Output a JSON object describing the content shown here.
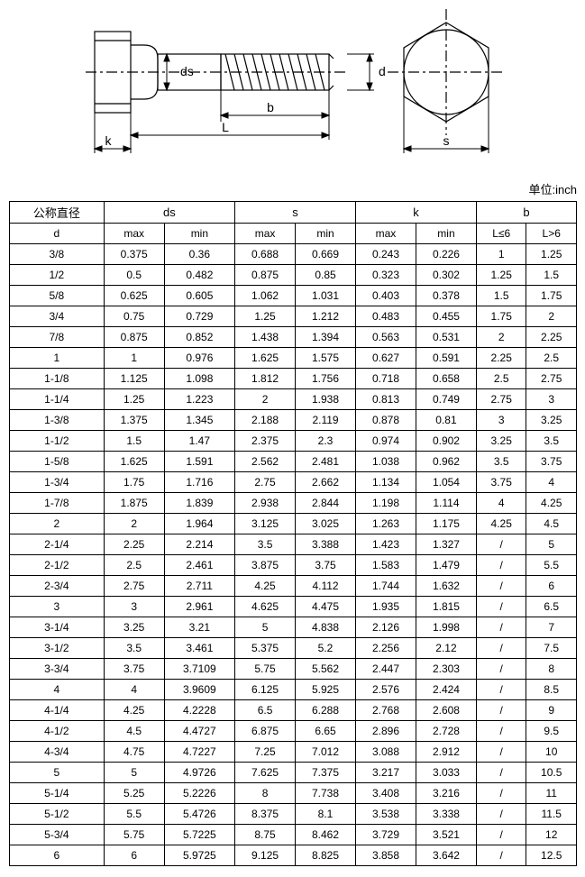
{
  "unit_label": "单位:inch",
  "diagram": {
    "labels": {
      "ds": "ds",
      "b": "b",
      "L": "L",
      "k": "k",
      "d": "d",
      "s": "s"
    },
    "stroke": "#000000",
    "fill": "#ffffff"
  },
  "table": {
    "header1": {
      "col_d": "公称直径",
      "col_ds": "ds",
      "col_s": "s",
      "col_k": "k",
      "col_b": "b"
    },
    "header2": {
      "col_d": "d",
      "max1": "max",
      "min1": "min",
      "max2": "max",
      "min2": "min",
      "max3": "max",
      "min3": "min",
      "lle6": "L≤6",
      "lgt6": "L>6"
    },
    "rows": [
      {
        "d": "3/8",
        "ds_max": "0.375",
        "ds_min": "0.36",
        "s_max": "0.688",
        "s_min": "0.669",
        "k_max": "0.243",
        "k_min": "0.226",
        "b1": "1",
        "b2": "1.25"
      },
      {
        "d": "1/2",
        "ds_max": "0.5",
        "ds_min": "0.482",
        "s_max": "0.875",
        "s_min": "0.85",
        "k_max": "0.323",
        "k_min": "0.302",
        "b1": "1.25",
        "b2": "1.5"
      },
      {
        "d": "5/8",
        "ds_max": "0.625",
        "ds_min": "0.605",
        "s_max": "1.062",
        "s_min": "1.031",
        "k_max": "0.403",
        "k_min": "0.378",
        "b1": "1.5",
        "b2": "1.75"
      },
      {
        "d": "3/4",
        "ds_max": "0.75",
        "ds_min": "0.729",
        "s_max": "1.25",
        "s_min": "1.212",
        "k_max": "0.483",
        "k_min": "0.455",
        "b1": "1.75",
        "b2": "2"
      },
      {
        "d": "7/8",
        "ds_max": "0.875",
        "ds_min": "0.852",
        "s_max": "1.438",
        "s_min": "1.394",
        "k_max": "0.563",
        "k_min": "0.531",
        "b1": "2",
        "b2": "2.25"
      },
      {
        "d": "1",
        "ds_max": "1",
        "ds_min": "0.976",
        "s_max": "1.625",
        "s_min": "1.575",
        "k_max": "0.627",
        "k_min": "0.591",
        "b1": "2.25",
        "b2": "2.5"
      },
      {
        "d": "1-1/8",
        "ds_max": "1.125",
        "ds_min": "1.098",
        "s_max": "1.812",
        "s_min": "1.756",
        "k_max": "0.718",
        "k_min": "0.658",
        "b1": "2.5",
        "b2": "2.75"
      },
      {
        "d": "1-1/4",
        "ds_max": "1.25",
        "ds_min": "1.223",
        "s_max": "2",
        "s_min": "1.938",
        "k_max": "0.813",
        "k_min": "0.749",
        "b1": "2.75",
        "b2": "3"
      },
      {
        "d": "1-3/8",
        "ds_max": "1.375",
        "ds_min": "1.345",
        "s_max": "2.188",
        "s_min": "2.119",
        "k_max": "0.878",
        "k_min": "0.81",
        "b1": "3",
        "b2": "3.25"
      },
      {
        "d": "1-1/2",
        "ds_max": "1.5",
        "ds_min": "1.47",
        "s_max": "2.375",
        "s_min": "2.3",
        "k_max": "0.974",
        "k_min": "0.902",
        "b1": "3.25",
        "b2": "3.5"
      },
      {
        "d": "1-5/8",
        "ds_max": "1.625",
        "ds_min": "1.591",
        "s_max": "2.562",
        "s_min": "2.481",
        "k_max": "1.038",
        "k_min": "0.962",
        "b1": "3.5",
        "b2": "3.75"
      },
      {
        "d": "1-3/4",
        "ds_max": "1.75",
        "ds_min": "1.716",
        "s_max": "2.75",
        "s_min": "2.662",
        "k_max": "1.134",
        "k_min": "1.054",
        "b1": "3.75",
        "b2": "4"
      },
      {
        "d": "1-7/8",
        "ds_max": "1.875",
        "ds_min": "1.839",
        "s_max": "2.938",
        "s_min": "2.844",
        "k_max": "1.198",
        "k_min": "1.114",
        "b1": "4",
        "b2": "4.25"
      },
      {
        "d": "2",
        "ds_max": "2",
        "ds_min": "1.964",
        "s_max": "3.125",
        "s_min": "3.025",
        "k_max": "1.263",
        "k_min": "1.175",
        "b1": "4.25",
        "b2": "4.5"
      },
      {
        "d": "2-1/4",
        "ds_max": "2.25",
        "ds_min": "2.214",
        "s_max": "3.5",
        "s_min": "3.388",
        "k_max": "1.423",
        "k_min": "1.327",
        "b1": "/",
        "b2": "5"
      },
      {
        "d": "2-1/2",
        "ds_max": "2.5",
        "ds_min": "2.461",
        "s_max": "3.875",
        "s_min": "3.75",
        "k_max": "1.583",
        "k_min": "1.479",
        "b1": "/",
        "b2": "5.5"
      },
      {
        "d": "2-3/4",
        "ds_max": "2.75",
        "ds_min": "2.711",
        "s_max": "4.25",
        "s_min": "4.112",
        "k_max": "1.744",
        "k_min": "1.632",
        "b1": "/",
        "b2": "6"
      },
      {
        "d": "3",
        "ds_max": "3",
        "ds_min": "2.961",
        "s_max": "4.625",
        "s_min": "4.475",
        "k_max": "1.935",
        "k_min": "1.815",
        "b1": "/",
        "b2": "6.5"
      },
      {
        "d": "3-1/4",
        "ds_max": "3.25",
        "ds_min": "3.21",
        "s_max": "5",
        "s_min": "4.838",
        "k_max": "2.126",
        "k_min": "1.998",
        "b1": "/",
        "b2": "7"
      },
      {
        "d": "3-1/2",
        "ds_max": "3.5",
        "ds_min": "3.461",
        "s_max": "5.375",
        "s_min": "5.2",
        "k_max": "2.256",
        "k_min": "2.12",
        "b1": "/",
        "b2": "7.5"
      },
      {
        "d": "3-3/4",
        "ds_max": "3.75",
        "ds_min": "3.7109",
        "s_max": "5.75",
        "s_min": "5.562",
        "k_max": "2.447",
        "k_min": "2.303",
        "b1": "/",
        "b2": "8"
      },
      {
        "d": "4",
        "ds_max": "4",
        "ds_min": "3.9609",
        "s_max": "6.125",
        "s_min": "5.925",
        "k_max": "2.576",
        "k_min": "2.424",
        "b1": "/",
        "b2": "8.5"
      },
      {
        "d": "4-1/4",
        "ds_max": "4.25",
        "ds_min": "4.2228",
        "s_max": "6.5",
        "s_min": "6.288",
        "k_max": "2.768",
        "k_min": "2.608",
        "b1": "/",
        "b2": "9"
      },
      {
        "d": "4-1/2",
        "ds_max": "4.5",
        "ds_min": "4.4727",
        "s_max": "6.875",
        "s_min": "6.65",
        "k_max": "2.896",
        "k_min": "2.728",
        "b1": "/",
        "b2": "9.5"
      },
      {
        "d": "4-3/4",
        "ds_max": "4.75",
        "ds_min": "4.7227",
        "s_max": "7.25",
        "s_min": "7.012",
        "k_max": "3.088",
        "k_min": "2.912",
        "b1": "/",
        "b2": "10"
      },
      {
        "d": "5",
        "ds_max": "5",
        "ds_min": "4.9726",
        "s_max": "7.625",
        "s_min": "7.375",
        "k_max": "3.217",
        "k_min": "3.033",
        "b1": "/",
        "b2": "10.5"
      },
      {
        "d": "5-1/4",
        "ds_max": "5.25",
        "ds_min": "5.2226",
        "s_max": "8",
        "s_min": "7.738",
        "k_max": "3.408",
        "k_min": "3.216",
        "b1": "/",
        "b2": "11"
      },
      {
        "d": "5-1/2",
        "ds_max": "5.5",
        "ds_min": "5.4726",
        "s_max": "8.375",
        "s_min": "8.1",
        "k_max": "3.538",
        "k_min": "3.338",
        "b1": "/",
        "b2": "11.5"
      },
      {
        "d": "5-3/4",
        "ds_max": "5.75",
        "ds_min": "5.7225",
        "s_max": "8.75",
        "s_min": "8.462",
        "k_max": "3.729",
        "k_min": "3.521",
        "b1": "/",
        "b2": "12"
      },
      {
        "d": "6",
        "ds_max": "6",
        "ds_min": "5.9725",
        "s_max": "9.125",
        "s_min": "8.825",
        "k_max": "3.858",
        "k_min": "3.642",
        "b1": "/",
        "b2": "12.5"
      }
    ]
  }
}
